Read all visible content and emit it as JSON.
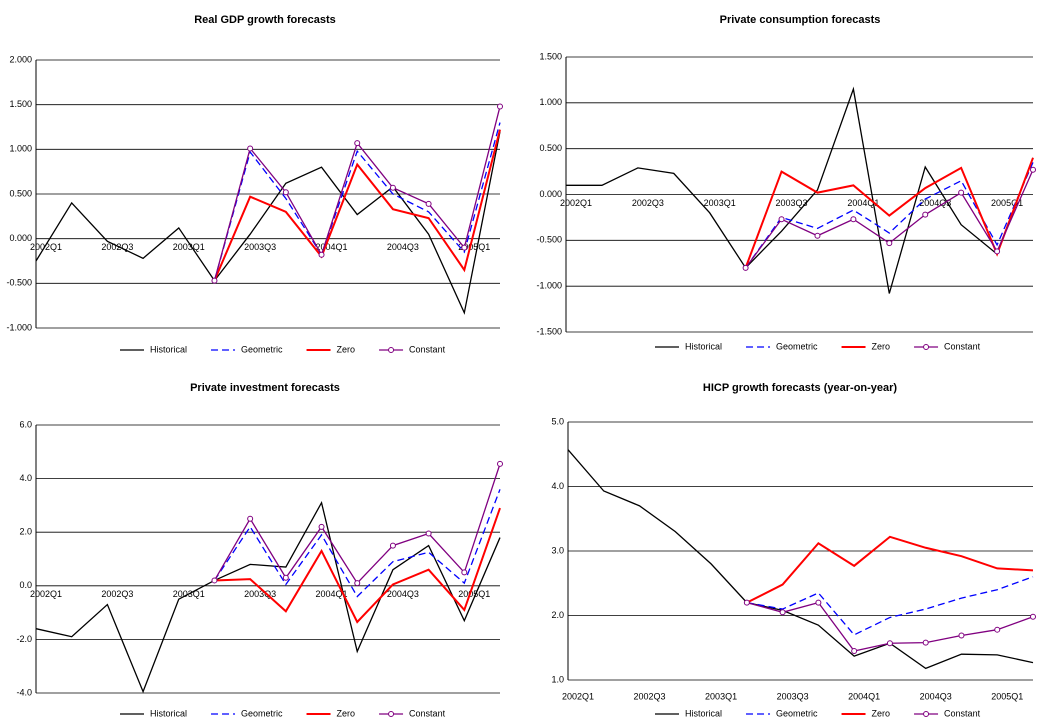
{
  "chart_data": [
    {
      "type": "line",
      "title": "Real GDP growth forecasts",
      "categories": [
        "2002Q1",
        null,
        "2002Q3",
        null,
        "2003Q1",
        null,
        "2003Q3",
        null,
        "2004Q1",
        null,
        "2004Q3",
        null,
        "2005Q1",
        null
      ],
      "ylim": [
        -1,
        2
      ],
      "yticks": [
        {
          "value": -1,
          "label": "-1.000"
        },
        {
          "value": -0.5,
          "label": "-0.500"
        },
        {
          "value": 0,
          "label": "0.000"
        },
        {
          "value": 0.5,
          "label": "0.500"
        },
        {
          "value": 1,
          "label": "1.000"
        },
        {
          "value": 1.5,
          "label": "1.500"
        },
        {
          "value": 2,
          "label": "2.000"
        }
      ],
      "grid": true,
      "series": [
        {
          "name": "Historical",
          "color": "#000000",
          "values": [
            -0.25,
            0.4,
            -0.03,
            -0.22,
            0.12,
            -0.47,
            0.05,
            0.62,
            0.8,
            0.27,
            0.58,
            0.05,
            -0.83,
            1.2
          ]
        },
        {
          "name": "Geometric",
          "color": "#0000ff",
          "dashed": true,
          "values": [
            null,
            null,
            null,
            null,
            null,
            -0.47,
            0.97,
            0.45,
            -0.18,
            0.98,
            0.5,
            0.3,
            -0.15,
            1.3
          ]
        },
        {
          "name": "Zero",
          "color": "#ff0000",
          "values": [
            null,
            null,
            null,
            null,
            null,
            -0.47,
            0.47,
            0.3,
            -0.2,
            0.83,
            0.33,
            0.23,
            -0.35,
            1.22
          ]
        },
        {
          "name": "Constant",
          "color": "#800080",
          "markers": true,
          "values": [
            null,
            null,
            null,
            null,
            null,
            -0.47,
            1.01,
            0.52,
            -0.18,
            1.07,
            0.57,
            0.39,
            -0.1,
            1.48
          ]
        }
      ]
    },
    {
      "type": "line",
      "title": "Private consumption forecasts",
      "categories": [
        "2002Q1",
        null,
        "2002Q3",
        null,
        "2003Q1",
        null,
        "2003Q3",
        null,
        "2004Q1",
        null,
        "2004Q3",
        null,
        "2005Q1",
        null
      ],
      "ylim": [
        -1.5,
        1.5
      ],
      "yticks": [
        {
          "value": -1.5,
          "label": "-1.500"
        },
        {
          "value": -1,
          "label": "-1.000"
        },
        {
          "value": -0.5,
          "label": "-0.500"
        },
        {
          "value": 0,
          "label": "0.000"
        },
        {
          "value": 0.5,
          "label": "0.500"
        },
        {
          "value": 1,
          "label": "1.000"
        },
        {
          "value": 1.5,
          "label": "1.500"
        }
      ],
      "grid": true,
      "series": [
        {
          "name": "Historical",
          "color": "#000000",
          "values": [
            0.1,
            0.1,
            0.29,
            0.23,
            -0.2,
            -0.8,
            -0.4,
            0.05,
            1.15,
            -1.08,
            0.3,
            -0.33,
            -0.65,
            0.4
          ]
        },
        {
          "name": "Geometric",
          "color": "#0000ff",
          "dashed": true,
          "values": [
            null,
            null,
            null,
            null,
            null,
            -0.8,
            -0.25,
            -0.37,
            -0.17,
            -0.42,
            -0.05,
            0.15,
            -0.55,
            0.35
          ]
        },
        {
          "name": "Zero",
          "color": "#ff0000",
          "values": [
            null,
            null,
            null,
            null,
            null,
            -0.8,
            0.25,
            0.02,
            0.1,
            -0.23,
            0.07,
            0.29,
            -0.65,
            0.4
          ]
        },
        {
          "name": "Constant",
          "color": "#800080",
          "markers": true,
          "values": [
            null,
            null,
            null,
            null,
            null,
            -0.8,
            -0.27,
            -0.45,
            -0.27,
            -0.53,
            -0.22,
            0.02,
            -0.62,
            0.27
          ]
        }
      ]
    },
    {
      "type": "line",
      "title": "Private investment forecasts",
      "categories": [
        "2002Q1",
        null,
        "2002Q3",
        null,
        "2003Q1",
        null,
        "2003Q3",
        null,
        "2004Q1",
        null,
        "2004Q3",
        null,
        "2005Q1",
        null
      ],
      "ylim": [
        -4,
        6
      ],
      "yticks": [
        {
          "value": -4,
          "label": "-4.0"
        },
        {
          "value": -2,
          "label": "-2.0"
        },
        {
          "value": 0,
          "label": "0.0"
        },
        {
          "value": 2,
          "label": "2.0"
        },
        {
          "value": 4,
          "label": "4.0"
        },
        {
          "value": 6,
          "label": "6.0"
        }
      ],
      "grid": true,
      "series": [
        {
          "name": "Historical",
          "color": "#000000",
          "values": [
            -1.6,
            -1.9,
            -0.7,
            -3.95,
            -0.5,
            0.2,
            0.8,
            0.7,
            3.1,
            -2.45,
            0.6,
            1.5,
            -1.3,
            1.8
          ]
        },
        {
          "name": "Geometric",
          "color": "#0000ff",
          "dashed": true,
          "values": [
            null,
            null,
            null,
            null,
            null,
            0.2,
            2.2,
            0.05,
            1.9,
            -0.4,
            0.9,
            1.25,
            0.1,
            3.6
          ]
        },
        {
          "name": "Zero",
          "color": "#ff0000",
          "values": [
            null,
            null,
            null,
            null,
            null,
            0.2,
            0.25,
            -0.95,
            1.3,
            -1.35,
            0.05,
            0.6,
            -0.9,
            2.9
          ]
        },
        {
          "name": "Constant",
          "color": "#800080",
          "markers": true,
          "values": [
            null,
            null,
            null,
            null,
            null,
            0.2,
            2.5,
            0.3,
            2.2,
            0.1,
            1.5,
            1.95,
            0.5,
            4.55
          ]
        }
      ]
    },
    {
      "type": "line",
      "title": "HICP growth forecasts (year-on-year)",
      "categories": [
        "2002Q1",
        null,
        "2002Q3",
        null,
        "2003Q1",
        null,
        "2003Q3",
        null,
        "2004Q1",
        null,
        "2004Q3",
        null,
        "2005Q1",
        null
      ],
      "ylim": [
        1,
        5
      ],
      "yticks": [
        {
          "value": 1,
          "label": "1.0"
        },
        {
          "value": 2,
          "label": "2.0"
        },
        {
          "value": 3,
          "label": "3.0"
        },
        {
          "value": 4,
          "label": "4.0"
        },
        {
          "value": 5,
          "label": "5.0"
        }
      ],
      "grid": true,
      "series": [
        {
          "name": "Historical",
          "color": "#000000",
          "values": [
            4.57,
            3.93,
            3.7,
            3.3,
            2.8,
            2.2,
            2.08,
            1.85,
            1.37,
            1.57,
            1.18,
            1.4,
            1.39,
            1.27
          ]
        },
        {
          "name": "Geometric",
          "color": "#0000ff",
          "dashed": true,
          "values": [
            null,
            null,
            null,
            null,
            null,
            2.2,
            2.1,
            2.35,
            1.7,
            1.97,
            2.1,
            2.27,
            2.4,
            2.6
          ]
        },
        {
          "name": "Zero",
          "color": "#ff0000",
          "values": [
            null,
            null,
            null,
            null,
            null,
            2.2,
            2.48,
            3.12,
            2.77,
            3.22,
            3.05,
            2.92,
            2.73,
            2.7
          ]
        },
        {
          "name": "Constant",
          "color": "#800080",
          "markers": true,
          "values": [
            null,
            null,
            null,
            null,
            null,
            2.2,
            2.05,
            2.2,
            1.45,
            1.57,
            1.58,
            1.69,
            1.78,
            1.98
          ]
        }
      ]
    }
  ]
}
